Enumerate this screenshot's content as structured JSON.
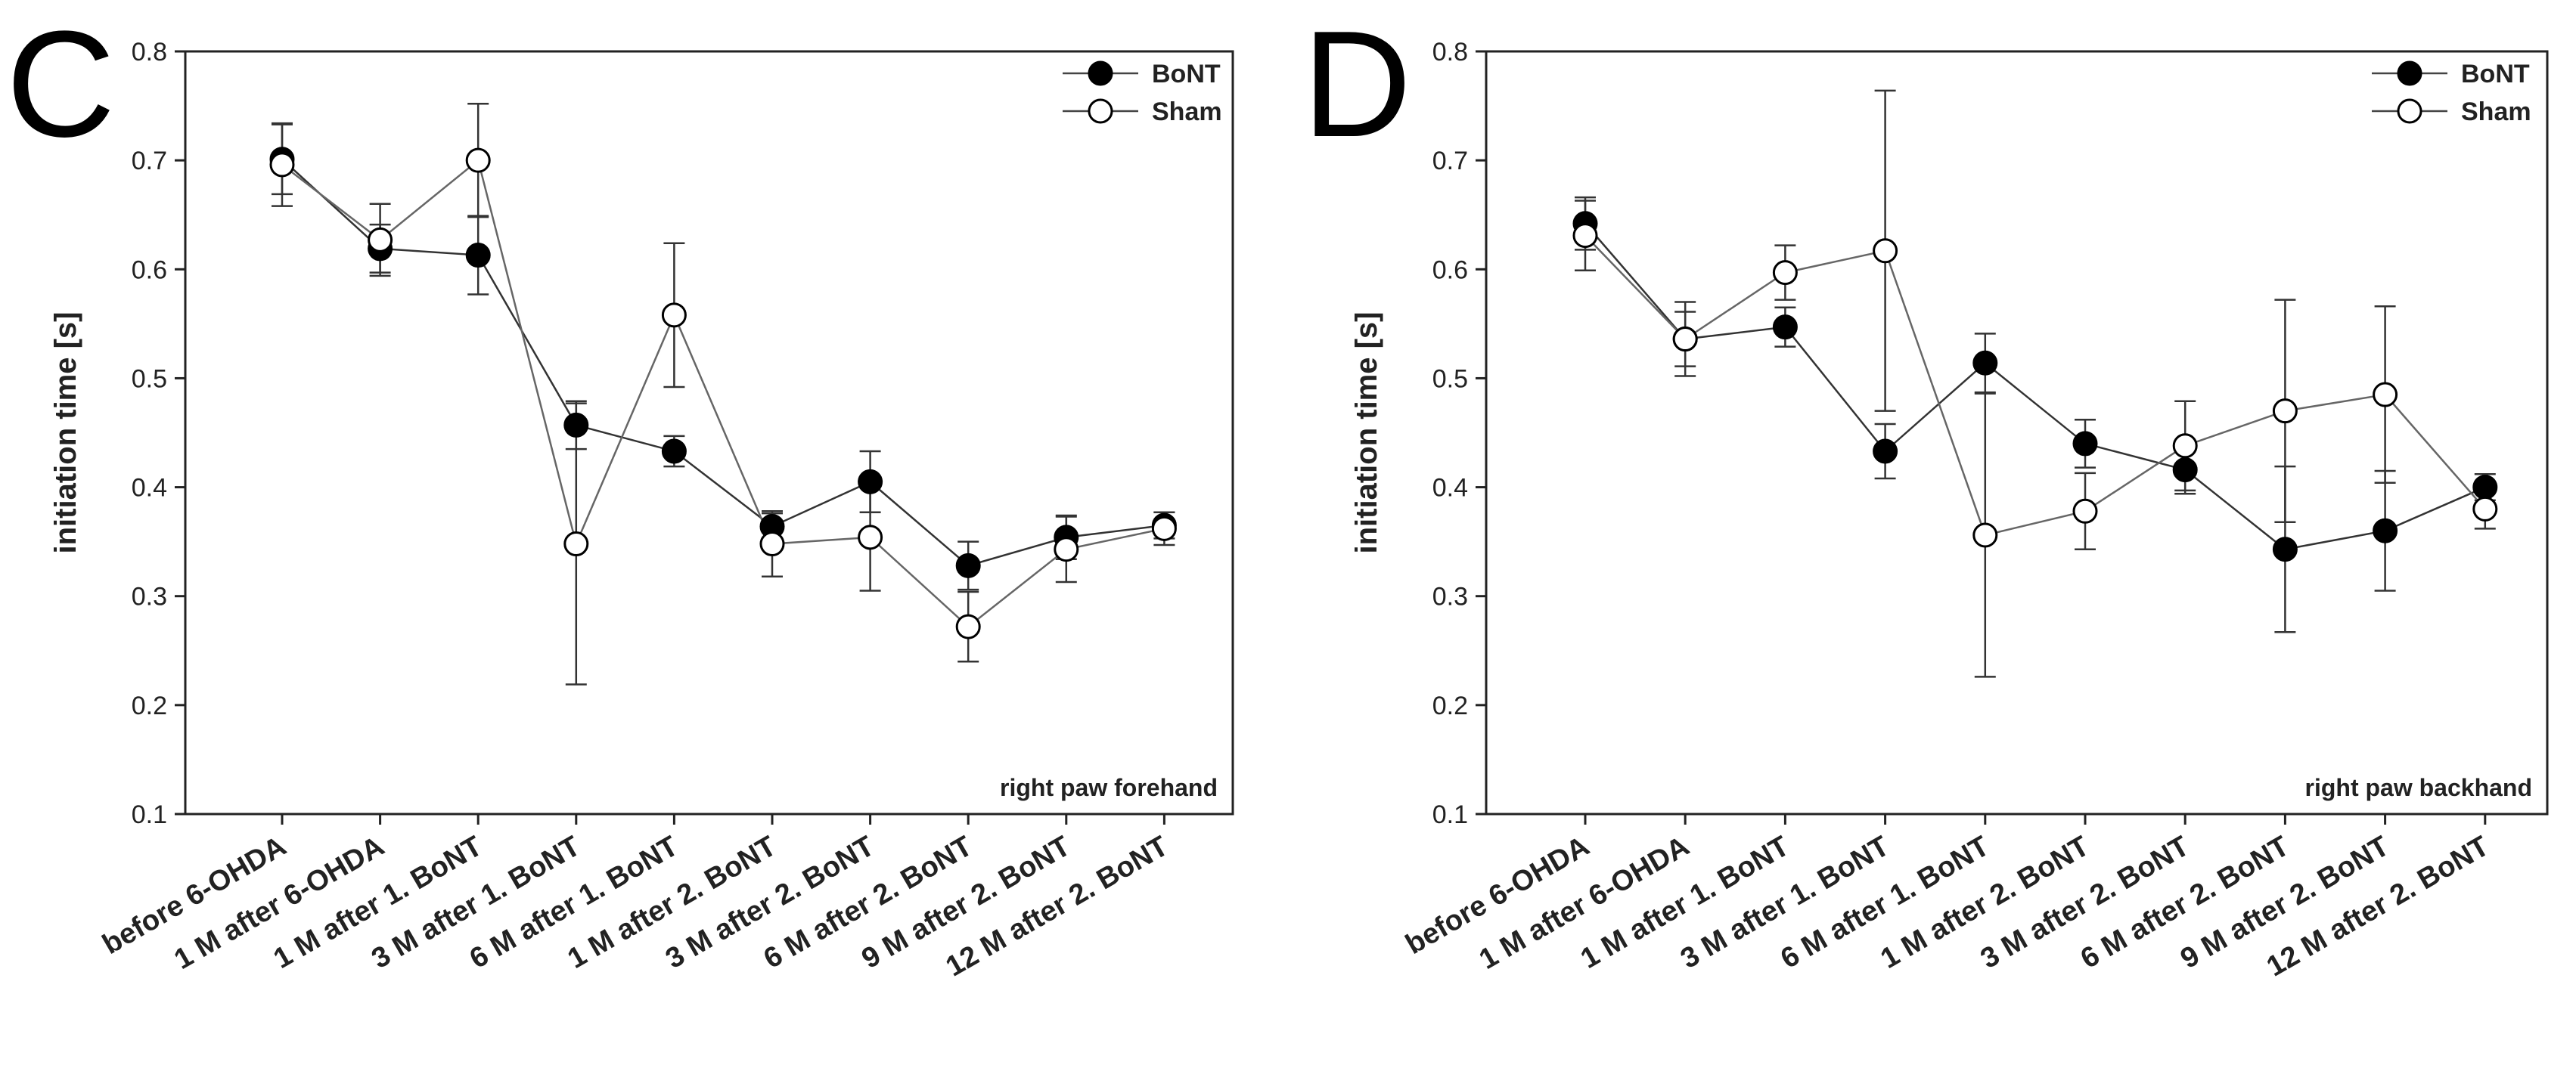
{
  "chart_data": [
    {
      "panel": "C",
      "type": "line",
      "annotation": "right paw forehand",
      "ylabel": "initiation time [s]",
      "ylim": [
        0.1,
        0.8
      ],
      "yticks": [
        "0.1",
        "0.2",
        "0.3",
        "0.4",
        "0.5",
        "0.6",
        "0.7",
        "0.8"
      ],
      "legend_position": "top-right",
      "categories": [
        "before 6-OHDA",
        "1 M after 6-OHDA",
        "1 M after 1. BoNT",
        "3 M after 1. BoNT",
        "6 M after 1. BoNT",
        "1 M after 2. BoNT",
        "3 M after 2. BoNT",
        "6 M after 2. BoNT",
        "9 M after 2. BoNT",
        "12 M after 2. BoNT"
      ],
      "series": [
        {
          "name": "BoNT",
          "marker": "filled",
          "values": [
            0.701,
            0.619,
            0.613,
            0.457,
            0.433,
            0.364,
            0.405,
            0.328,
            0.354,
            0.365
          ],
          "errors": [
            0.032,
            0.022,
            0.036,
            0.022,
            0.014,
            0.012,
            0.028,
            0.022,
            0.02,
            0.012
          ]
        },
        {
          "name": "Sham",
          "marker": "open",
          "values": [
            0.696,
            0.627,
            0.7,
            0.348,
            0.558,
            0.348,
            0.354,
            0.272,
            0.343,
            0.362
          ],
          "errors": [
            0.038,
            0.033,
            0.052,
            0.129,
            0.066,
            0.03,
            0.049,
            0.032,
            0.03,
            0.015
          ]
        }
      ]
    },
    {
      "panel": "D",
      "type": "line",
      "annotation": "right paw backhand",
      "ylabel": "initiation time [s]",
      "ylim": [
        0.1,
        0.8
      ],
      "yticks": [
        "0.1",
        "0.2",
        "0.3",
        "0.4",
        "0.5",
        "0.6",
        "0.7",
        "0.8"
      ],
      "legend_position": "top-right",
      "categories": [
        "before 6-OHDA",
        "1 M after 6-OHDA",
        "1 M after 1. BoNT",
        "3 M after 1. BoNT",
        "6 M after 1. BoNT",
        "1 M after 2. BoNT",
        "3 M after 2. BoNT",
        "6 M after 2. BoNT",
        "9 M after 2. BoNT",
        "12 M after 2. BoNT"
      ],
      "series": [
        {
          "name": "BoNT",
          "marker": "filled",
          "values": [
            0.642,
            0.536,
            0.547,
            0.433,
            0.514,
            0.44,
            0.416,
            0.343,
            0.36,
            0.4
          ],
          "errors": [
            0.024,
            0.025,
            0.018,
            0.025,
            0.027,
            0.022,
            0.022,
            0.076,
            0.055,
            0.012
          ]
        },
        {
          "name": "Sham",
          "marker": "open",
          "values": [
            0.631,
            0.536,
            0.597,
            0.617,
            0.356,
            0.378,
            0.438,
            0.47,
            0.485,
            0.38
          ],
          "errors": [
            0.032,
            0.034,
            0.025,
            0.147,
            0.13,
            0.035,
            0.041,
            0.102,
            0.081,
            0.018
          ]
        }
      ]
    }
  ]
}
